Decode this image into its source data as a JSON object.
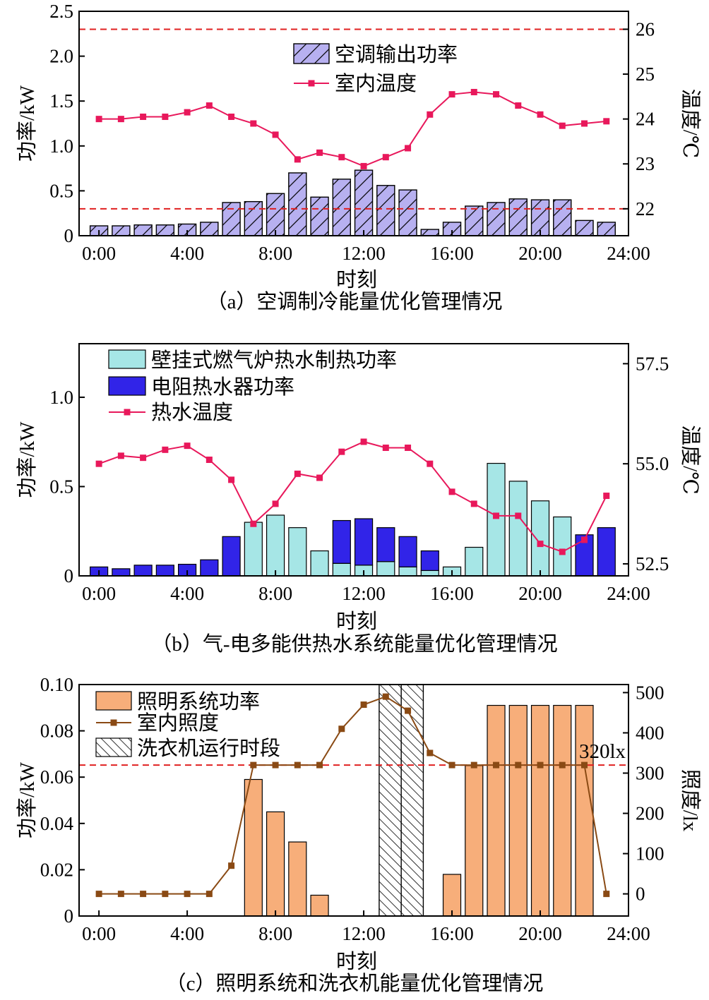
{
  "colors": {
    "ac_bar": "#b7b0f0",
    "temp_line": "#e8185b",
    "limit_line": "#e02020",
    "gas_bar": "#a6e6e6",
    "elec_bar": "#3124e8",
    "light_bar": "#f7ae7a",
    "lux_line": "#8a4a14"
  },
  "chart_data": [
    {
      "type": "bar",
      "id": "a",
      "caption": "（a）空调制冷能量优化管理情况",
      "xlabel": "时刻",
      "ylabel": "功率/kW",
      "y2label": "温度/℃",
      "xticks": [
        "0:00",
        "4:00",
        "8:00",
        "12:00",
        "16:00",
        "20:00",
        "24:00"
      ],
      "xlim": [
        -0.9,
        24
      ],
      "ylim": [
        0,
        2.5
      ],
      "yticks": [
        "0",
        "0.5",
        "1.0",
        "1.5",
        "2.0",
        "2.5"
      ],
      "y2lim": [
        21.4,
        26.4
      ],
      "y2ticks": [
        "22",
        "23",
        "24",
        "25",
        "26"
      ],
      "limit_lines_y2": [
        22,
        26
      ],
      "hours": [
        0,
        1,
        2,
        3,
        4,
        5,
        6,
        7,
        8,
        9,
        10,
        11,
        12,
        13,
        14,
        15,
        16,
        17,
        18,
        19,
        20,
        21,
        22,
        23
      ],
      "series": [
        {
          "name": "空调输出功率",
          "kind": "bar",
          "values": [
            0.11,
            0.11,
            0.12,
            0.12,
            0.13,
            0.15,
            0.37,
            0.38,
            0.47,
            0.7,
            0.43,
            0.63,
            0.73,
            0.56,
            0.51,
            0.07,
            0.15,
            0.33,
            0.37,
            0.41,
            0.4,
            0.4,
            0.17,
            0.15
          ]
        },
        {
          "name": "室内温度",
          "kind": "line",
          "values": [
            24.0,
            24.0,
            24.05,
            24.05,
            24.15,
            24.3,
            24.05,
            23.9,
            23.65,
            23.1,
            23.25,
            23.15,
            22.95,
            23.15,
            23.35,
            24.1,
            24.55,
            24.6,
            24.55,
            24.3,
            24.1,
            23.85,
            23.9,
            23.95
          ]
        }
      ],
      "legend": [
        "空调输出功率",
        "室内温度"
      ]
    },
    {
      "type": "bar",
      "id": "b",
      "caption": "（b）气-电多能供热水系统能量优化管理情况",
      "xlabel": "时刻",
      "ylabel": "功率/kW",
      "y2label": "温度/℃",
      "xticks": [
        "0:00",
        "4:00",
        "8:00",
        "12:00",
        "16:00",
        "20:00",
        "24:00"
      ],
      "xlim": [
        -0.9,
        24
      ],
      "ylim": [
        0,
        1.3
      ],
      "yticks": [
        "0",
        "0.5",
        "1.0"
      ],
      "y2lim": [
        52.2,
        58.0
      ],
      "y2ticks": [
        "52.5",
        "55.0",
        "57.5"
      ],
      "hours": [
        0,
        1,
        2,
        3,
        4,
        5,
        6,
        7,
        8,
        9,
        10,
        11,
        12,
        13,
        14,
        15,
        16,
        17,
        18,
        19,
        20,
        21,
        22,
        23
      ],
      "series": [
        {
          "name": "壁挂式燃气炉热水制热功率",
          "kind": "bar-stack-bottom",
          "values": [
            0,
            0,
            0,
            0,
            0,
            0,
            0,
            0.3,
            0.34,
            0.27,
            0.14,
            0.07,
            0.06,
            0.08,
            0.05,
            0.03,
            0.05,
            0.16,
            0.63,
            0.53,
            0.42,
            0.33,
            0,
            0
          ]
        },
        {
          "name": "电阻热水器功率",
          "kind": "bar-stack-top",
          "values": [
            0.05,
            0.04,
            0.06,
            0.06,
            0.065,
            0.09,
            0.22,
            0,
            0,
            0,
            0,
            0.24,
            0.26,
            0.19,
            0.17,
            0.11,
            0,
            0,
            0,
            0,
            0,
            0,
            0.23,
            0.27
          ]
        },
        {
          "name": "热水温度",
          "kind": "line",
          "values": [
            55.0,
            55.2,
            55.15,
            55.35,
            55.45,
            55.1,
            54.6,
            53.5,
            54.0,
            54.75,
            54.65,
            55.3,
            55.55,
            55.4,
            55.4,
            55.0,
            54.3,
            54.0,
            53.7,
            53.7,
            53.0,
            52.8,
            53.1,
            54.2
          ]
        }
      ],
      "legend": [
        "壁挂式燃气炉热水制热功率",
        "电阻热水器功率",
        "热水温度"
      ]
    },
    {
      "type": "bar",
      "id": "c",
      "caption": "（c）照明系统和洗衣机能量优化管理情况",
      "xlabel": "时刻",
      "ylabel": "功率/kW",
      "y2label": "照度/lx",
      "xticks": [
        "0:00",
        "4:00",
        "8:00",
        "12:00",
        "16:00",
        "20:00",
        "24:00"
      ],
      "xlim": [
        -0.9,
        24
      ],
      "ylim": [
        0,
        0.1
      ],
      "yticks": [
        "0",
        "0.02",
        "0.04",
        "0.06",
        "0.08",
        "0.10"
      ],
      "y2lim": [
        -55,
        520
      ],
      "y2ticks": [
        "0",
        "100",
        "200",
        "300",
        "400",
        "500"
      ],
      "limit_line_y2": 320,
      "limit_label": "320lx",
      "washer_period": [
        12.7,
        14.7
      ],
      "washer_split": 13.7,
      "hours": [
        0,
        1,
        2,
        3,
        4,
        5,
        6,
        7,
        8,
        9,
        10,
        11,
        12,
        13,
        14,
        15,
        16,
        17,
        18,
        19,
        20,
        21,
        22,
        23
      ],
      "series": [
        {
          "name": "照明系统功率",
          "kind": "bar",
          "values": [
            0,
            0,
            0,
            0,
            0,
            0,
            0,
            0.059,
            0.045,
            0.032,
            0.009,
            0,
            0,
            0,
            0,
            0,
            0.018,
            0.065,
            0.091,
            0.091,
            0.091,
            0.091,
            0.091,
            0
          ]
        },
        {
          "name": "室内照度",
          "kind": "line",
          "values": [
            0,
            0,
            0,
            0,
            0,
            0,
            70,
            320,
            320,
            320,
            320,
            410,
            470,
            490,
            455,
            350,
            320,
            320,
            320,
            320,
            320,
            320,
            320,
            0
          ]
        }
      ],
      "legend": [
        "照明系统功率",
        "室内照度",
        "洗衣机运行时段"
      ]
    }
  ]
}
